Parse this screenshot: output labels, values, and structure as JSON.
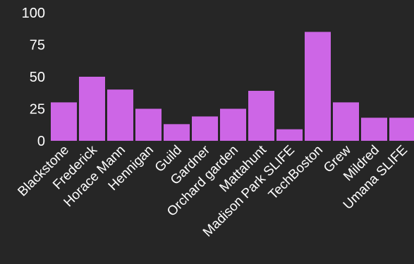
{
  "chart_data": {
    "type": "bar",
    "title": "",
    "xlabel": "",
    "ylabel": "",
    "ylim": [
      0,
      100
    ],
    "yticks": [
      0,
      25,
      50,
      75,
      100
    ],
    "categories": [
      "Blackstone",
      "Frederick",
      "Horace Mann",
      "Hennigan",
      "Guild",
      "Gardner",
      "Orchard garden",
      "Mattahunt",
      "Madison Park SLIFE",
      "TechBoston",
      "Grew",
      "Mildred",
      "Umana SLIFE"
    ],
    "values": [
      30,
      50,
      40,
      25,
      13,
      19,
      25,
      39,
      9,
      85,
      30,
      18,
      18
    ],
    "bar_color": "#cd66e6",
    "background": "#262626",
    "text_color": "#ffffff",
    "grid": false,
    "legend": "none"
  }
}
